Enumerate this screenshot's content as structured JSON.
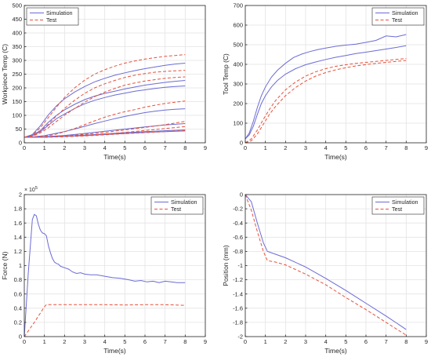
{
  "colors": {
    "simulation": "#6b6bd6",
    "test": "#e8503a",
    "axis": "#262626",
    "grid": "#e3e3e3"
  },
  "chart_data": [
    {
      "type": "line",
      "xlabel": "Time(s)",
      "ylabel": "Workpiece Temp (C)",
      "xlim": [
        0,
        9
      ],
      "ylim": [
        0,
        500
      ],
      "xticks": [
        0,
        1,
        2,
        3,
        4,
        5,
        6,
        7,
        8,
        9
      ],
      "yticks": [
        0,
        50,
        100,
        150,
        200,
        250,
        300,
        350,
        400,
        450,
        500
      ],
      "exponent_label": "",
      "grid": true,
      "legend": "top-left",
      "legend_entries": [
        "Simulation",
        "Test"
      ],
      "series": [
        {
          "group": "Simulation",
          "dash": false,
          "x": [
            0,
            0.4,
            0.8,
            1.2,
            1.6,
            2,
            2.5,
            3,
            3.5,
            4,
            4.5,
            5,
            5.5,
            6,
            6.5,
            7,
            7.5,
            8
          ],
          "y": [
            20,
            30,
            62,
            102,
            135,
            160,
            185,
            205,
            222,
            235,
            246,
            255,
            263,
            270,
            276,
            282,
            287,
            290
          ]
        },
        {
          "group": "Simulation",
          "dash": false,
          "x": [
            0,
            0.4,
            0.8,
            1.2,
            1.6,
            2,
            2.5,
            3,
            3.5,
            4,
            4.5,
            5,
            5.5,
            6,
            6.5,
            7,
            7.5,
            8
          ],
          "y": [
            20,
            27,
            45,
            75,
            100,
            120,
            140,
            157,
            170,
            180,
            188,
            196,
            203,
            210,
            215,
            220,
            224,
            227
          ]
        },
        {
          "group": "Simulation",
          "dash": false,
          "x": [
            0,
            0.4,
            0.8,
            1.2,
            1.6,
            2,
            2.5,
            3,
            3.5,
            4,
            4.5,
            5,
            5.5,
            6,
            6.5,
            7,
            7.5,
            8
          ],
          "y": [
            20,
            26,
            40,
            64,
            88,
            105,
            125,
            142,
            155,
            165,
            174,
            181,
            188,
            193,
            198,
            202,
            205,
            207
          ]
        },
        {
          "group": "Simulation",
          "dash": false,
          "x": [
            0,
            0.5,
            1,
            1.5,
            2,
            2.5,
            3,
            3.5,
            4,
            4.5,
            5,
            5.5,
            6,
            6.5,
            7,
            7.5,
            8
          ],
          "y": [
            20,
            22,
            26,
            33,
            41,
            50,
            60,
            70,
            79,
            88,
            96,
            103,
            110,
            115,
            119,
            122,
            124
          ]
        },
        {
          "group": "Simulation",
          "dash": false,
          "x": [
            0,
            1,
            2,
            3,
            4,
            5,
            6,
            7,
            8
          ],
          "y": [
            20,
            22,
            27,
            34,
            42,
            50,
            58,
            65,
            70
          ]
        },
        {
          "group": "Simulation",
          "dash": false,
          "x": [
            0,
            1,
            2,
            3,
            4,
            5,
            6,
            7,
            8
          ],
          "y": [
            20,
            21,
            24,
            28,
            32,
            37,
            41,
            44,
            47
          ]
        },
        {
          "group": "Simulation",
          "dash": false,
          "x": [
            0,
            1,
            2,
            3,
            4,
            5,
            6,
            7,
            8
          ],
          "y": [
            20,
            21,
            23,
            26,
            30,
            34,
            38,
            41,
            43
          ]
        },
        {
          "group": "Test",
          "dash": true,
          "x": [
            0,
            0.4,
            0.8,
            1.2,
            1.6,
            2,
            2.5,
            3,
            3.5,
            4,
            4.5,
            5,
            5.5,
            6,
            6.5,
            7,
            7.5,
            8
          ],
          "y": [
            20,
            28,
            55,
            92,
            130,
            165,
            200,
            228,
            250,
            266,
            279,
            290,
            298,
            305,
            310,
            315,
            318,
            321
          ]
        },
        {
          "group": "Test",
          "dash": true,
          "x": [
            0,
            0.4,
            0.8,
            1.2,
            1.6,
            2,
            2.5,
            3,
            3.5,
            4,
            4.5,
            5,
            5.5,
            6,
            6.5,
            7,
            7.5,
            8
          ],
          "y": [
            20,
            25,
            42,
            68,
            98,
            125,
            155,
            180,
            200,
            215,
            227,
            238,
            246,
            252,
            257,
            260,
            262,
            264
          ]
        },
        {
          "group": "Test",
          "dash": true,
          "x": [
            0,
            0.4,
            0.8,
            1.2,
            1.6,
            2,
            2.5,
            3,
            3.5,
            4,
            4.5,
            5,
            5.5,
            6,
            6.5,
            7,
            7.5,
            8
          ],
          "y": [
            20,
            24,
            36,
            55,
            78,
            100,
            125,
            148,
            168,
            185,
            198,
            210,
            218,
            225,
            230,
            235,
            238,
            240
          ]
        },
        {
          "group": "Test",
          "dash": true,
          "x": [
            0,
            0.5,
            1,
            1.5,
            2,
            2.5,
            3,
            3.5,
            4,
            4.5,
            5,
            5.5,
            6,
            6.5,
            7,
            7.5,
            8
          ],
          "y": [
            20,
            21,
            24,
            30,
            40,
            52,
            66,
            80,
            93,
            104,
            113,
            121,
            130,
            137,
            143,
            148,
            152
          ]
        },
        {
          "group": "Test",
          "dash": true,
          "x": [
            0,
            1,
            2,
            3,
            4,
            5,
            6,
            7,
            8
          ],
          "y": [
            20,
            21,
            25,
            31,
            38,
            47,
            56,
            66,
            78
          ]
        },
        {
          "group": "Test",
          "dash": true,
          "x": [
            0,
            1,
            2,
            3,
            4,
            5,
            6,
            7,
            8
          ],
          "y": [
            20,
            21,
            23,
            27,
            32,
            38,
            45,
            52,
            59
          ]
        },
        {
          "group": "Test",
          "dash": true,
          "x": [
            0,
            1,
            2,
            3,
            4,
            5,
            6,
            7,
            8
          ],
          "y": [
            20,
            20,
            22,
            25,
            29,
            33,
            37,
            41,
            45
          ]
        }
      ]
    },
    {
      "type": "line",
      "xlabel": "Time(s)",
      "ylabel": "Tool Temp (C)",
      "xlim": [
        0,
        9
      ],
      "ylim": [
        0,
        700
      ],
      "xticks": [
        0,
        1,
        2,
        3,
        4,
        5,
        6,
        7,
        8,
        9
      ],
      "yticks": [
        0,
        100,
        200,
        300,
        400,
        500,
        600,
        700
      ],
      "exponent_label": "",
      "grid": true,
      "legend": "top-right",
      "legend_entries": [
        "Simulation",
        "Test"
      ],
      "series": [
        {
          "group": "Simulation",
          "dash": false,
          "x": [
            0,
            0.2,
            0.4,
            0.6,
            0.8,
            1,
            1.3,
            1.6,
            2,
            2.4,
            2.8,
            3.2,
            3.6,
            4,
            4.5,
            5,
            5.5,
            6,
            6.5,
            7,
            7.5,
            8
          ],
          "y": [
            20,
            50,
            110,
            180,
            240,
            285,
            335,
            370,
            405,
            435,
            452,
            465,
            475,
            483,
            492,
            498,
            503,
            512,
            522,
            545,
            540,
            552
          ]
        },
        {
          "group": "Simulation",
          "dash": false,
          "x": [
            0,
            0.2,
            0.4,
            0.6,
            0.8,
            1,
            1.3,
            1.6,
            2,
            2.5,
            3,
            3.5,
            4,
            4.5,
            5,
            5.5,
            6,
            6.5,
            7,
            7.5,
            8
          ],
          "y": [
            20,
            40,
            85,
            145,
            200,
            240,
            285,
            318,
            350,
            378,
            398,
            412,
            425,
            436,
            445,
            455,
            462,
            470,
            478,
            486,
            495
          ]
        },
        {
          "group": "Test",
          "dash": true,
          "x": [
            0,
            0.3,
            0.6,
            0.9,
            1.2,
            1.5,
            2,
            2.5,
            3,
            3.5,
            4,
            4.5,
            5,
            5.5,
            6,
            6.5,
            7,
            7.5,
            8
          ],
          "y": [
            0,
            20,
            65,
            120,
            170,
            215,
            270,
            310,
            340,
            362,
            378,
            390,
            398,
            405,
            410,
            415,
            420,
            425,
            430
          ]
        },
        {
          "group": "Test",
          "dash": true,
          "x": [
            0,
            0.3,
            0.6,
            0.9,
            1.2,
            1.5,
            2,
            2.5,
            3,
            3.5,
            4,
            4.5,
            5,
            5.5,
            6,
            6.5,
            7,
            7.5,
            8
          ],
          "y": [
            0,
            10,
            45,
            95,
            145,
            185,
            240,
            282,
            315,
            340,
            358,
            372,
            383,
            392,
            399,
            405,
            410,
            415,
            420
          ]
        }
      ]
    },
    {
      "type": "line",
      "xlabel": "Time(s)",
      "ylabel": "Force (N)",
      "xlim": [
        0,
        9
      ],
      "ylim": [
        0,
        200000
      ],
      "xticks": [
        0,
        1,
        2,
        3,
        4,
        5,
        6,
        7,
        8,
        9
      ],
      "yticks": [
        0,
        20000,
        40000,
        60000,
        80000,
        100000,
        120000,
        140000,
        160000,
        180000,
        200000
      ],
      "ytick_labels": [
        "0",
        "0.2",
        "0.4",
        "0.6",
        "0.8",
        "1",
        "1.2",
        "1.4",
        "1.6",
        "1.8",
        "2"
      ],
      "exponent_label": "× 10^5",
      "grid": true,
      "legend": "top-right",
      "legend_entries": [
        "Simulation",
        "Test"
      ],
      "series": [
        {
          "group": "Simulation",
          "dash": false,
          "x": [
            0,
            0.2,
            0.4,
            0.5,
            0.6,
            0.7,
            0.8,
            0.9,
            1,
            1.1,
            1.2,
            1.3,
            1.4,
            1.5,
            1.6,
            1.7,
            1.8,
            2,
            2.2,
            2.4,
            2.6,
            2.8,
            3,
            3.3,
            3.6,
            4,
            4.4,
            4.8,
            5.2,
            5.5,
            5.8,
            6.1,
            6.4,
            6.7,
            7,
            7.3,
            7.6,
            8
          ],
          "y": [
            0,
            90000,
            165000,
            172000,
            170000,
            158000,
            150000,
            146000,
            145000,
            142000,
            128000,
            118000,
            110000,
            105000,
            103000,
            102000,
            99000,
            97000,
            95000,
            91000,
            89000,
            90000,
            88000,
            87000,
            87000,
            85000,
            83000,
            82000,
            80000,
            78000,
            79000,
            77000,
            78000,
            76000,
            78000,
            77000,
            76000,
            76000
          ]
        },
        {
          "group": "Test",
          "dash": true,
          "x": [
            0,
            0.5,
            1,
            1.1,
            2,
            3,
            4,
            5,
            6,
            7,
            8
          ],
          "y": [
            0,
            20000,
            42000,
            45000,
            45000,
            45000,
            45000,
            44500,
            45000,
            45000,
            44000
          ]
        }
      ]
    },
    {
      "type": "line",
      "xlabel": "Time(s)",
      "ylabel": "Position (mm)",
      "xlim": [
        0,
        9
      ],
      "ylim": [
        -2,
        0
      ],
      "xticks": [
        0,
        1,
        2,
        3,
        4,
        5,
        6,
        7,
        8,
        9
      ],
      "yticks": [
        -2,
        -1.8,
        -1.6,
        -1.4,
        -1.2,
        -1,
        -0.8,
        -0.6,
        -0.4,
        -0.2,
        0
      ],
      "exponent_label": "",
      "grid": true,
      "legend": "top-right",
      "legend_entries": [
        "Simulation",
        "Test"
      ],
      "series": [
        {
          "group": "Simulation",
          "dash": false,
          "x": [
            0,
            0.3,
            0.6,
            0.9,
            1.1,
            1.5,
            2,
            3,
            4,
            5,
            6,
            7,
            8
          ],
          "y": [
            0,
            -0.1,
            -0.4,
            -0.68,
            -0.8,
            -0.84,
            -0.89,
            -1.02,
            -1.18,
            -1.35,
            -1.53,
            -1.71,
            -1.9
          ]
        },
        {
          "group": "Test",
          "dash": true,
          "x": [
            0,
            0.3,
            0.6,
            0.9,
            1.1,
            1.5,
            2,
            3,
            4,
            5,
            6,
            7,
            8
          ],
          "y": [
            0,
            -0.22,
            -0.52,
            -0.8,
            -0.93,
            -0.95,
            -0.99,
            -1.12,
            -1.27,
            -1.45,
            -1.62,
            -1.8,
            -1.98
          ]
        }
      ]
    }
  ]
}
